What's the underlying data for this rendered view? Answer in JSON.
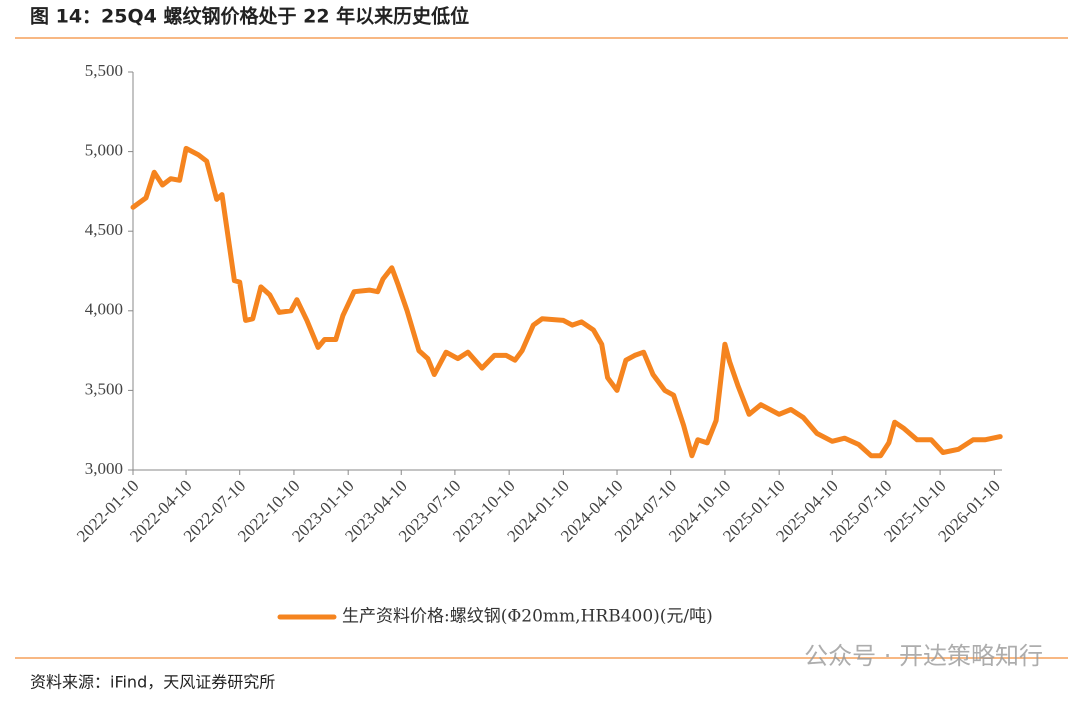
{
  "chart_data": {
    "type": "line",
    "title": "图 14：25Q4 螺纹钢价格处于 22 年以来历史低位",
    "source": "资料来源：iFind，天风证券研究所",
    "watermark": "公众号 · 开达策略知行",
    "x": [
      "2022-01-10",
      "2022-02-01",
      "2022-02-15",
      "2022-03-01",
      "2022-03-15",
      "2022-03-30",
      "2022-04-10",
      "2022-05-01",
      "2022-05-15",
      "2022-06-01",
      "2022-06-10",
      "2022-07-01",
      "2022-07-10",
      "2022-07-20",
      "2022-08-01",
      "2022-08-15",
      "2022-08-30",
      "2022-09-15",
      "2022-10-05",
      "2022-10-15",
      "2022-11-01",
      "2022-11-20",
      "2022-12-01",
      "2022-12-20",
      "2023-01-01",
      "2023-01-20",
      "2023-02-15",
      "2023-03-01",
      "2023-03-10",
      "2023-03-25",
      "2023-04-05",
      "2023-04-20",
      "2023-05-10",
      "2023-05-25",
      "2023-06-05",
      "2023-06-25",
      "2023-07-15",
      "2023-08-01",
      "2023-08-25",
      "2023-09-15",
      "2023-10-05",
      "2023-10-20",
      "2023-11-01",
      "2023-11-20",
      "2023-12-05",
      "2024-01-10",
      "2024-01-25",
      "2024-02-10",
      "2024-03-01",
      "2024-03-15",
      "2024-03-25",
      "2024-04-10",
      "2024-04-25",
      "2024-05-10",
      "2024-05-25",
      "2024-06-10",
      "2024-06-30",
      "2024-07-15",
      "2024-08-01",
      "2024-08-15",
      "2024-08-25",
      "2024-09-10",
      "2024-09-25",
      "2024-10-10",
      "2024-10-18",
      "2024-11-01",
      "2024-11-20",
      "2024-12-10",
      "2025-01-10",
      "2025-01-30",
      "2025-02-20",
      "2025-03-15",
      "2025-04-10",
      "2025-05-01",
      "2025-05-25",
      "2025-06-15",
      "2025-07-01",
      "2025-07-15",
      "2025-07-25",
      "2025-08-10",
      "2025-09-01",
      "2025-09-25",
      "2025-10-15",
      "2025-11-10",
      "2025-12-05",
      "2025-12-25",
      "2026-01-20"
    ],
    "series": [
      {
        "name": "生产资料价格:螺纹钢(Φ20mm,HRB400)(元/吨)",
        "color": "#f5841f",
        "values": [
          4650,
          4710,
          4870,
          4790,
          4830,
          4820,
          5020,
          4980,
          4940,
          4700,
          4730,
          4190,
          4180,
          3940,
          3950,
          4150,
          4100,
          3990,
          4000,
          4070,
          3940,
          3770,
          3820,
          3820,
          3970,
          4120,
          4130,
          4120,
          4200,
          4270,
          4160,
          4000,
          3750,
          3700,
          3600,
          3740,
          3700,
          3740,
          3640,
          3720,
          3720,
          3690,
          3750,
          3910,
          3950,
          3940,
          3910,
          3930,
          3880,
          3790,
          3580,
          3500,
          3690,
          3720,
          3740,
          3600,
          3500,
          3470,
          3280,
          3090,
          3190,
          3170,
          3310,
          3790,
          3680,
          3530,
          3350,
          3410,
          3350,
          3380,
          3330,
          3230,
          3180,
          3200,
          3160,
          3090,
          3090,
          3170,
          3300,
          3260,
          3190,
          3190,
          3110,
          3130,
          3190,
          3190,
          3210
        ]
      }
    ],
    "xlim": [
      "2022-01-10",
      "2026-01-23"
    ],
    "xticks": [
      "2022-01-10",
      "2022-04-10",
      "2022-07-10",
      "2022-10-10",
      "2023-01-10",
      "2023-04-10",
      "2023-07-10",
      "2023-10-10",
      "2024-01-10",
      "2024-04-10",
      "2024-07-10",
      "2024-10-10",
      "2025-01-10",
      "2025-04-10",
      "2025-07-10",
      "2025-10-10",
      "2026-01-10"
    ],
    "ylim": [
      3000,
      5500
    ],
    "yticks": [
      {
        "value": 3000,
        "label": "3,000"
      },
      {
        "value": 3500,
        "label": "3,500"
      },
      {
        "value": 4000,
        "label": "4,000"
      },
      {
        "value": 4500,
        "label": "4,500"
      },
      {
        "value": 5000,
        "label": "5,000"
      },
      {
        "value": 5500,
        "label": "5,500"
      }
    ],
    "legend": "bottom"
  }
}
